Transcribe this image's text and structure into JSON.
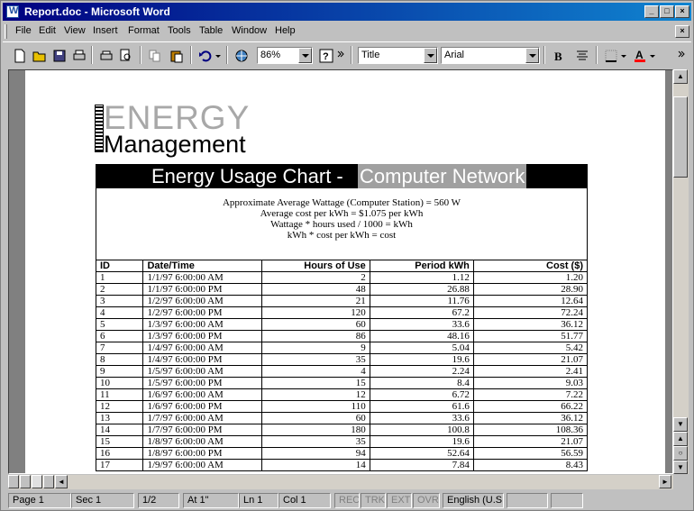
{
  "window": {
    "title": "Report.doc - Microsoft Word"
  },
  "menu": [
    "File",
    "Edit",
    "View",
    "Insert",
    "Format",
    "Tools",
    "Table",
    "Window",
    "Help"
  ],
  "toolbar": {
    "zoom": "86%",
    "style": "Title",
    "font": "Arial"
  },
  "doc": {
    "logo_top": "ENERGY",
    "logo_bottom": "Management",
    "banner_left": "Energy Usage Chart -",
    "banner_right": "Computer Network",
    "info": [
      "Approximate Average Wattage (Computer Station) = 560 W",
      "Average cost per kWh = $1.075 per kWh",
      "Wattage * hours used / 1000 = kWh",
      "kWh * cost per kWh = cost"
    ],
    "table": {
      "headers": [
        "ID",
        "Date/Time",
        "Hours of Use",
        "Period kWh",
        "Cost ($)"
      ],
      "rows": [
        [
          "1",
          "1/1/97 6:00:00 AM",
          "2",
          "1.12",
          "1.20"
        ],
        [
          "2",
          "1/1/97 6:00:00 PM",
          "48",
          "26.88",
          "28.90"
        ],
        [
          "3",
          "1/2/97 6:00:00 AM",
          "21",
          "11.76",
          "12.64"
        ],
        [
          "4",
          "1/2/97 6:00:00 PM",
          "120",
          "67.2",
          "72.24"
        ],
        [
          "5",
          "1/3/97 6:00:00 AM",
          "60",
          "33.6",
          "36.12"
        ],
        [
          "6",
          "1/3/97 6:00:00 PM",
          "86",
          "48.16",
          "51.77"
        ],
        [
          "7",
          "1/4/97 6:00:00 AM",
          "9",
          "5.04",
          "5.42"
        ],
        [
          "8",
          "1/4/97 6:00:00 PM",
          "35",
          "19.6",
          "21.07"
        ],
        [
          "9",
          "1/5/97 6:00:00 AM",
          "4",
          "2.24",
          "2.41"
        ],
        [
          "10",
          "1/5/97 6:00:00 PM",
          "15",
          "8.4",
          "9.03"
        ],
        [
          "11",
          "1/6/97 6:00:00 AM",
          "12",
          "6.72",
          "7.22"
        ],
        [
          "12",
          "1/6/97 6:00:00 PM",
          "110",
          "61.6",
          "66.22"
        ],
        [
          "13",
          "1/7/97 6:00:00 AM",
          "60",
          "33.6",
          "36.12"
        ],
        [
          "14",
          "1/7/97 6:00:00 PM",
          "180",
          "100.8",
          "108.36"
        ],
        [
          "15",
          "1/8/97 6:00:00 AM",
          "35",
          "19.6",
          "21.07"
        ],
        [
          "16",
          "1/8/97 6:00:00 PM",
          "94",
          "52.64",
          "56.59"
        ],
        [
          "17",
          "1/9/97 6:00:00 AM",
          "14",
          "7.84",
          "8.43"
        ]
      ]
    }
  },
  "status": {
    "page": "Page  1",
    "sec": "Sec  1",
    "pages": "1/2",
    "at": "At  1\"",
    "ln": "Ln  1",
    "col": "Col  1",
    "rec": "REC",
    "trk": "TRK",
    "ext": "EXT",
    "ovr": "OVR",
    "lang": "English (U.S"
  },
  "colors": {
    "titlebar": "#000080",
    "banner": "#000000",
    "banner_highlight": "#a0a0a0",
    "logo_gray": "#a8a8a8"
  }
}
